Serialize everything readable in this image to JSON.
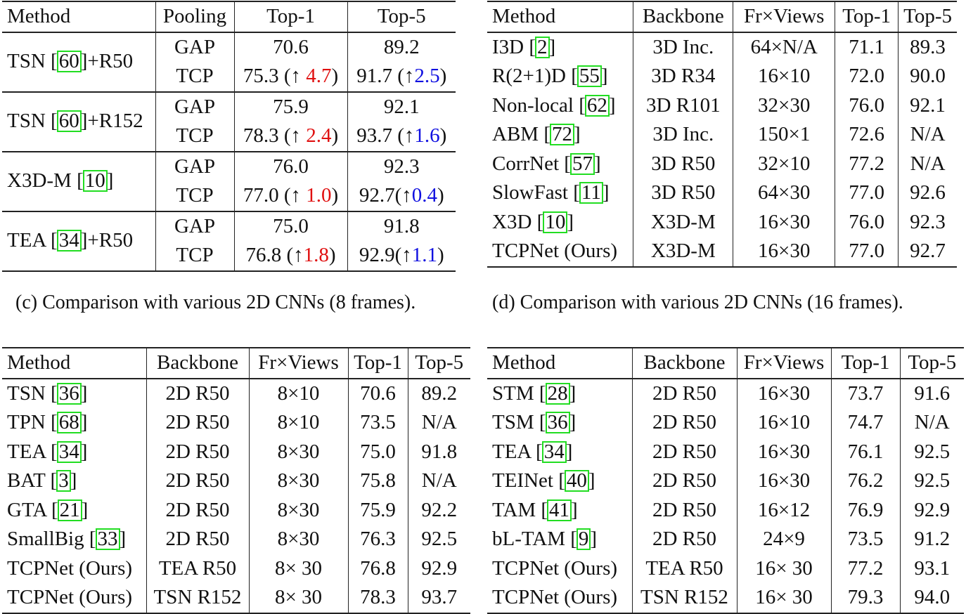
{
  "table_c": {
    "headers": [
      "Method",
      "Pooling",
      "Top-1",
      "Top-5"
    ],
    "groups": [
      {
        "method": "TSN",
        "cite": "60",
        "suffix": "+R50",
        "rows": [
          {
            "pooling": "GAP",
            "top1": "70.6",
            "top5": "89.2"
          },
          {
            "pooling": "TCP",
            "top1": "75.3 (↑ ",
            "top1_gain": "4.7",
            "top1_close": ")",
            "top5": "91.7 (↑",
            "top5_gain": "2.5",
            "top5_close": ")"
          }
        ]
      },
      {
        "method": "TSN",
        "cite": "60",
        "suffix": "+R152",
        "rows": [
          {
            "pooling": "GAP",
            "top1": "75.9",
            "top5": "92.1"
          },
          {
            "pooling": "TCP",
            "top1": "78.3 (↑ ",
            "top1_gain": "2.4",
            "top1_close": ")",
            "top5": "93.7 (↑",
            "top5_gain": "1.6",
            "top5_close": ")"
          }
        ]
      },
      {
        "method": "X3D-M",
        "cite": "10",
        "suffix": "",
        "rows": [
          {
            "pooling": "GAP",
            "top1": "76.0",
            "top5": "92.3"
          },
          {
            "pooling": "TCP",
            "top1": "77.0 (↑ ",
            "top1_gain": "1.0",
            "top1_close": ")",
            "top5": "92.7(↑",
            "top5_gain": "0.4",
            "top5_close": ")"
          }
        ]
      },
      {
        "method": "TEA",
        "cite": "34",
        "suffix": "+R50",
        "rows": [
          {
            "pooling": "GAP",
            "top1": "75.0",
            "top5": "91.8"
          },
          {
            "pooling": "TCP",
            "top1": "76.8 (↑",
            "top1_gain": "1.8",
            "top1_close": ")",
            "top5": "92.9(↑",
            "top5_gain": "1.1",
            "top5_close": ")"
          }
        ]
      }
    ],
    "caption": "(c) Comparison with various 2D CNNs (8 frames)."
  },
  "table_d": {
    "headers": [
      "Method",
      "Backbone",
      "Fr×Views",
      "Top-1",
      "Top-5"
    ],
    "rows": [
      {
        "method": "I3D",
        "cite": "2",
        "backbone": "3D Inc.",
        "frviews": "64×N/A",
        "top1": "71.1",
        "top5": "89.3"
      },
      {
        "method": "R(2+1)D",
        "cite": "55",
        "backbone": "3D R34",
        "frviews": "16×10",
        "top1": "72.0",
        "top5": "90.0"
      },
      {
        "method": "Non-local",
        "cite": "62",
        "backbone": "3D R101",
        "frviews": "32×30",
        "top1": "76.0",
        "top5": "92.1"
      },
      {
        "method": "ABM",
        "cite": "72",
        "backbone": "3D Inc.",
        "frviews": "150×1",
        "top1": "72.6",
        "top5": "N/A"
      },
      {
        "method": "CorrNet",
        "cite": "57",
        "backbone": "3D R50",
        "frviews": "32×10",
        "top1": "77.2",
        "top5": "N/A"
      },
      {
        "method": "SlowFast",
        "cite": "11",
        "backbone": "3D R50",
        "frviews": "64×30",
        "top1": "77.0",
        "top5": "92.6"
      },
      {
        "method": "X3D",
        "cite": "10",
        "backbone": "X3D-M",
        "frviews": "16×30",
        "top1": "76.0",
        "top5": "92.3"
      },
      {
        "method": "TCPNet (Ours)",
        "cite": "",
        "backbone": "X3D-M",
        "frviews": "16×30",
        "top1": "77.0",
        "top5": "92.7",
        "bold": true
      }
    ],
    "caption": "(d) Comparison with various 2D CNNs (16 frames)."
  },
  "table_e": {
    "headers": [
      "Method",
      "Backbone",
      "Fr×Views",
      "Top-1",
      "Top-5"
    ],
    "rows": [
      {
        "method": "TSN",
        "cite": "36",
        "backbone": "2D R50",
        "frviews": "8×10",
        "top1": "70.6",
        "top5": "89.2"
      },
      {
        "method": "TPN",
        "cite": "68",
        "backbone": "2D R50",
        "frviews": "8×10",
        "top1": "73.5",
        "top5": "N/A"
      },
      {
        "method": "TEA",
        "cite": "34",
        "backbone": "2D R50",
        "frviews": "8×30",
        "top1": "75.0",
        "top5": "91.8"
      },
      {
        "method": "BAT",
        "cite": "3",
        "backbone": "2D R50",
        "frviews": "8×30",
        "top1": "75.8",
        "top5": "N/A"
      },
      {
        "method": "GTA",
        "cite": "21",
        "backbone": "2D R50",
        "frviews": "8×30",
        "top1": "75.9",
        "top5": "92.2"
      },
      {
        "method": "SmallBig",
        "cite": "33",
        "backbone": "2D R50",
        "frviews": "8×30",
        "top1": "76.3",
        "top5": "92.5"
      },
      {
        "method": "TCPNet (Ours)",
        "cite": "",
        "backbone": "TEA R50",
        "frviews": "8× 30",
        "top1": "76.8",
        "top5": "92.9"
      },
      {
        "method": "TCPNet (Ours)",
        "cite": "",
        "backbone": "TSN R152",
        "frviews": "8× 30",
        "top1": "78.3",
        "top5": "93.7",
        "bold": true
      }
    ]
  },
  "table_f": {
    "headers": [
      "Method",
      "Backbone",
      "Fr×Views",
      "Top-1",
      "Top-5"
    ],
    "rows": [
      {
        "method": "STM",
        "cite": "28",
        "backbone": "2D R50",
        "frviews": "16×30",
        "top1": "73.7",
        "top5": "91.6"
      },
      {
        "method": "TSM",
        "cite": "36",
        "backbone": "2D R50",
        "frviews": "16×10",
        "top1": "74.7",
        "top5": "N/A"
      },
      {
        "method": "TEA",
        "cite": "34",
        "backbone": "2D R50",
        "frviews": "16×30",
        "top1": "76.1",
        "top5": "92.5"
      },
      {
        "method": "TEINet",
        "cite": "40",
        "backbone": "2D R50",
        "frviews": "16×30",
        "top1": "76.2",
        "top5": "92.5"
      },
      {
        "method": "TAM",
        "cite": "41",
        "backbone": "2D R50",
        "frviews": "16×12",
        "top1": "76.9",
        "top5": "92.9"
      },
      {
        "method": "bL-TAM",
        "cite": "9",
        "backbone": "2D R50",
        "frviews": "24×9",
        "top1": "73.5",
        "top5": "91.2"
      },
      {
        "method": "TCPNet (Ours)",
        "cite": "",
        "backbone": "TEA R50",
        "frviews": "16× 30",
        "top1": "77.2",
        "top5": "93.1"
      },
      {
        "method": "TCPNet (Ours)",
        "cite": "",
        "backbone": "TSN R152",
        "frviews": "16× 30",
        "top1": "79.3",
        "top5": "94.0",
        "bold": true
      }
    ]
  },
  "colors": {
    "gain_top1": "#e01010",
    "gain_top5": "#1010e0",
    "cite_box": "#22dd22"
  }
}
